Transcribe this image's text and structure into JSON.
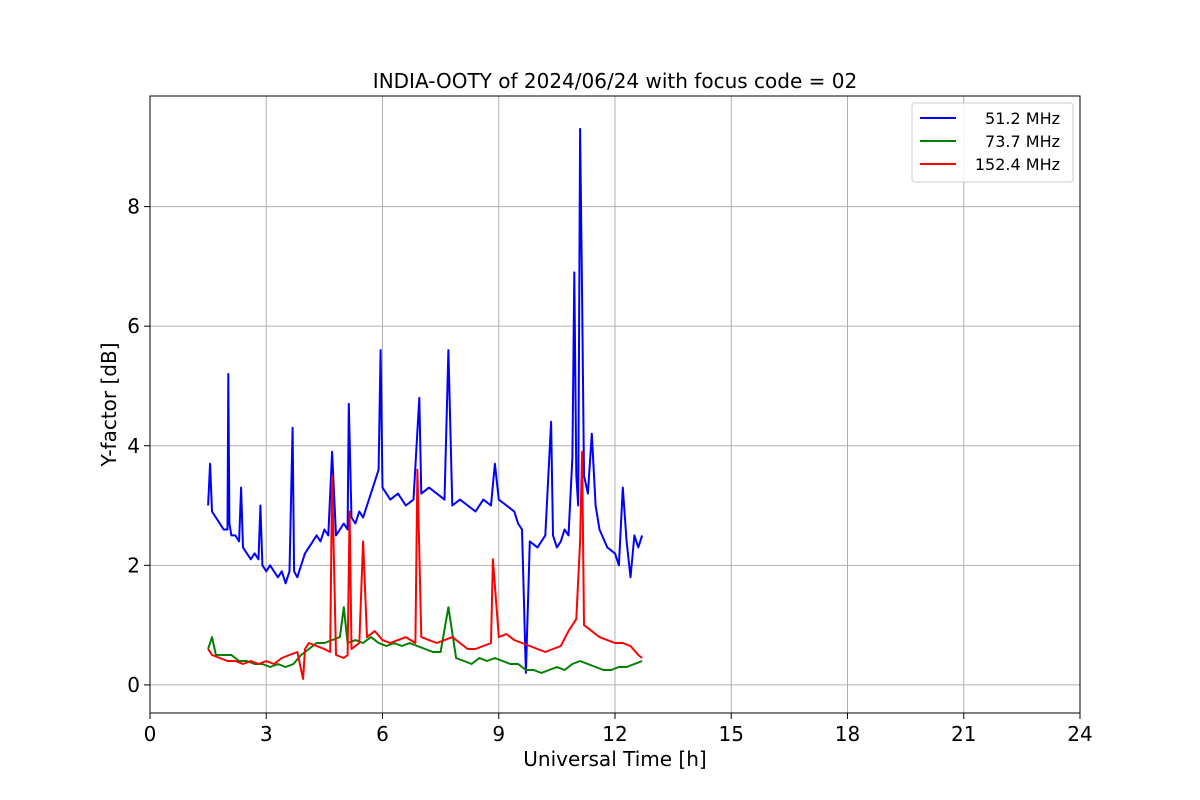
{
  "chart_data": {
    "type": "line",
    "title": "INDIA-OOTY of 2024/06/24 with focus code = 02",
    "xlabel": "Universal Time [h]",
    "ylabel": "Y-factor [dB]",
    "xlim": [
      0,
      24
    ],
    "ylim": [
      -0.47,
      9.85
    ],
    "x_ticks": [
      0,
      3,
      6,
      9,
      12,
      15,
      18,
      21,
      24
    ],
    "x_tick_labels": [
      "0",
      "3",
      "6",
      "9",
      "12",
      "15",
      "18",
      "21",
      "24"
    ],
    "y_ticks": [
      0,
      2,
      4,
      6,
      8
    ],
    "y_tick_labels": [
      "0",
      "2",
      "4",
      "6",
      "8"
    ],
    "grid": true,
    "legend_position": "top-right",
    "series": [
      {
        "name": "51.2 MHz",
        "color": "#0000ff",
        "x": [
          1.5,
          1.55,
          1.6,
          1.7,
          1.8,
          1.9,
          2.0,
          2.02,
          2.05,
          2.1,
          2.2,
          2.3,
          2.35,
          2.4,
          2.5,
          2.6,
          2.7,
          2.8,
          2.85,
          2.9,
          3.0,
          3.1,
          3.2,
          3.3,
          3.4,
          3.5,
          3.6,
          3.68,
          3.72,
          3.8,
          3.9,
          4.0,
          4.1,
          4.2,
          4.3,
          4.4,
          4.5,
          4.6,
          4.7,
          4.8,
          4.9,
          5.0,
          5.1,
          5.13,
          5.2,
          5.3,
          5.4,
          5.5,
          5.6,
          5.7,
          5.8,
          5.9,
          5.95,
          6.0,
          6.2,
          6.4,
          6.6,
          6.8,
          6.95,
          7.0,
          7.2,
          7.4,
          7.6,
          7.7,
          7.8,
          8.0,
          8.2,
          8.4,
          8.6,
          8.8,
          8.9,
          9.0,
          9.2,
          9.4,
          9.5,
          9.6,
          9.7,
          9.8,
          10.0,
          10.2,
          10.35,
          10.4,
          10.5,
          10.6,
          10.7,
          10.8,
          10.9,
          10.95,
          11.0,
          11.05,
          11.1,
          11.15,
          11.2,
          11.3,
          11.4,
          11.5,
          11.6,
          11.8,
          12.0,
          12.1,
          12.2,
          12.3,
          12.4,
          12.5,
          12.6,
          12.7
        ],
        "values": [
          3.0,
          3.7,
          2.9,
          2.8,
          2.7,
          2.6,
          2.6,
          5.2,
          2.7,
          2.5,
          2.5,
          2.4,
          3.3,
          2.3,
          2.2,
          2.1,
          2.2,
          2.1,
          3.0,
          2.0,
          1.9,
          2.0,
          1.9,
          1.8,
          1.9,
          1.7,
          1.9,
          4.3,
          1.9,
          1.8,
          2.0,
          2.2,
          2.3,
          2.4,
          2.5,
          2.4,
          2.6,
          2.5,
          3.9,
          2.5,
          2.6,
          2.7,
          2.6,
          4.7,
          2.8,
          2.7,
          2.9,
          2.8,
          3.0,
          3.2,
          3.4,
          3.6,
          5.6,
          3.3,
          3.1,
          3.2,
          3.0,
          3.1,
          4.8,
          3.2,
          3.3,
          3.2,
          3.1,
          5.6,
          3.0,
          3.1,
          3.0,
          2.9,
          3.1,
          3.0,
          3.7,
          3.1,
          3.0,
          2.9,
          2.7,
          2.6,
          0.2,
          2.4,
          2.3,
          2.5,
          4.4,
          2.5,
          2.3,
          2.4,
          2.6,
          2.5,
          3.8,
          6.9,
          3.5,
          3.0,
          9.3,
          6.5,
          3.5,
          3.2,
          4.2,
          3.0,
          2.6,
          2.3,
          2.2,
          2.0,
          3.3,
          2.4,
          1.8,
          2.5,
          2.3,
          2.5
        ]
      },
      {
        "name": "73.7 MHz",
        "color": "#008000",
        "x": [
          1.5,
          1.6,
          1.7,
          1.9,
          2.1,
          2.3,
          2.5,
          2.7,
          2.9,
          3.1,
          3.3,
          3.5,
          3.7,
          3.9,
          4.1,
          4.3,
          4.5,
          4.7,
          4.9,
          5.0,
          5.1,
          5.3,
          5.5,
          5.7,
          5.9,
          6.1,
          6.3,
          6.5,
          6.7,
          6.9,
          7.1,
          7.3,
          7.5,
          7.7,
          7.9,
          8.1,
          8.3,
          8.5,
          8.7,
          8.9,
          9.1,
          9.3,
          9.5,
          9.7,
          9.9,
          10.1,
          10.3,
          10.5,
          10.7,
          10.9,
          11.1,
          11.3,
          11.5,
          11.7,
          11.9,
          12.1,
          12.3,
          12.5,
          12.7
        ],
        "values": [
          0.6,
          0.8,
          0.5,
          0.5,
          0.5,
          0.4,
          0.4,
          0.35,
          0.35,
          0.3,
          0.35,
          0.3,
          0.35,
          0.5,
          0.6,
          0.7,
          0.7,
          0.75,
          0.8,
          1.3,
          0.7,
          0.75,
          0.7,
          0.8,
          0.7,
          0.65,
          0.7,
          0.65,
          0.7,
          0.65,
          0.6,
          0.55,
          0.55,
          1.3,
          0.45,
          0.4,
          0.35,
          0.45,
          0.4,
          0.45,
          0.4,
          0.35,
          0.35,
          0.25,
          0.25,
          0.2,
          0.25,
          0.3,
          0.25,
          0.35,
          0.4,
          0.35,
          0.3,
          0.25,
          0.25,
          0.3,
          0.3,
          0.35,
          0.4
        ]
      },
      {
        "name": "152.4 MHz",
        "color": "#ff0000",
        "x": [
          1.5,
          1.6,
          1.8,
          2.0,
          2.2,
          2.4,
          2.6,
          2.8,
          3.0,
          3.2,
          3.4,
          3.6,
          3.8,
          3.95,
          4.0,
          4.1,
          4.3,
          4.5,
          4.65,
          4.7,
          4.8,
          5.0,
          5.1,
          5.15,
          5.2,
          5.4,
          5.5,
          5.6,
          5.8,
          6.0,
          6.2,
          6.4,
          6.6,
          6.85,
          6.9,
          7.0,
          7.2,
          7.4,
          7.6,
          7.8,
          8.0,
          8.2,
          8.4,
          8.6,
          8.8,
          8.85,
          9.0,
          9.2,
          9.4,
          9.6,
          9.8,
          10.0,
          10.2,
          10.4,
          10.6,
          10.8,
          11.0,
          11.1,
          11.15,
          11.2,
          11.4,
          11.6,
          11.8,
          12.0,
          12.2,
          12.4,
          12.6,
          12.7
        ],
        "values": [
          0.6,
          0.5,
          0.45,
          0.4,
          0.4,
          0.35,
          0.4,
          0.35,
          0.4,
          0.35,
          0.45,
          0.5,
          0.55,
          0.1,
          0.6,
          0.7,
          0.65,
          0.6,
          0.55,
          3.5,
          0.5,
          0.45,
          0.5,
          2.9,
          0.6,
          0.7,
          2.4,
          0.8,
          0.9,
          0.75,
          0.7,
          0.75,
          0.8,
          0.7,
          3.6,
          0.8,
          0.75,
          0.7,
          0.75,
          0.8,
          0.7,
          0.6,
          0.6,
          0.65,
          0.7,
          2.1,
          0.8,
          0.85,
          0.75,
          0.7,
          0.65,
          0.6,
          0.55,
          0.6,
          0.65,
          0.9,
          1.1,
          2.4,
          3.9,
          1.0,
          0.9,
          0.8,
          0.75,
          0.7,
          0.7,
          0.65,
          0.5,
          0.45
        ]
      }
    ]
  }
}
